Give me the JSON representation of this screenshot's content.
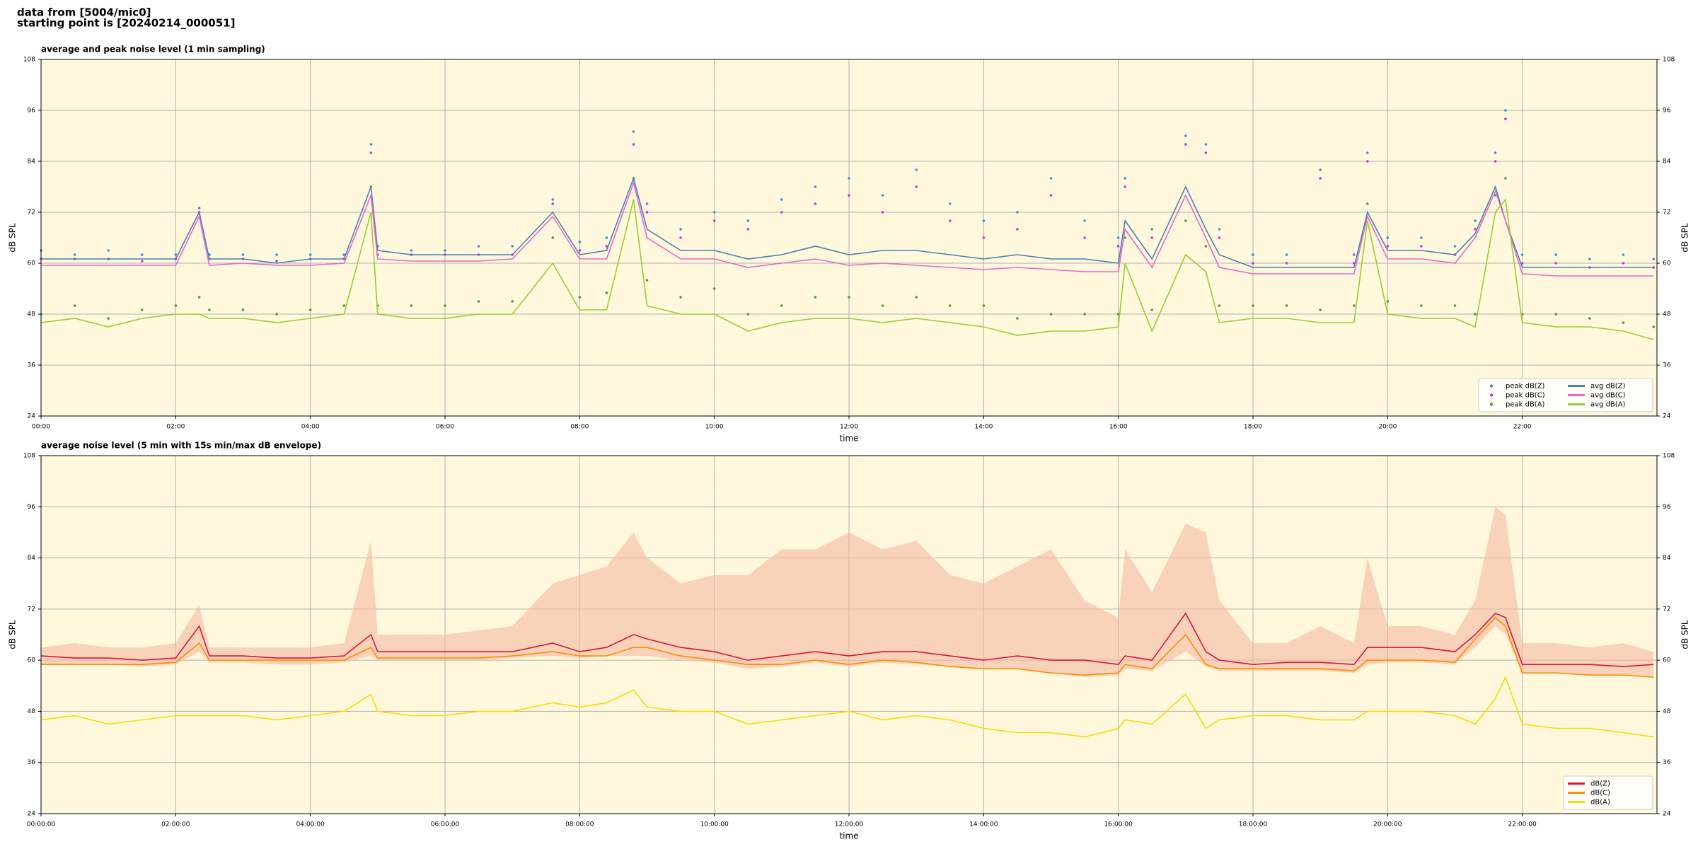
{
  "header": {
    "line1": "data from [5004/mic0]",
    "line2": "starting point is [20240214_000051]"
  },
  "chart_data": [
    {
      "type": "line",
      "title": "average and peak noise level (1 min sampling)",
      "xlabel": "time",
      "ylabel": "dB SPL",
      "background": "#fff8dc",
      "grid": true,
      "legend": "lower right",
      "legend_columns": 2,
      "x": [
        0,
        0.5,
        1,
        1.5,
        2,
        2.35,
        2.5,
        3,
        3.5,
        4,
        4.5,
        4.9,
        5,
        5.5,
        6,
        6.5,
        7,
        7.6,
        8,
        8.4,
        8.8,
        9,
        9.5,
        10,
        10.5,
        11,
        11.5,
        12,
        12.5,
        13,
        13.5,
        14,
        14.5,
        15,
        15.5,
        16,
        16.1,
        16.5,
        17,
        17.3,
        17.5,
        18,
        18.5,
        19,
        19.5,
        19.7,
        20,
        20.5,
        21,
        21.3,
        21.6,
        21.75,
        22,
        22.5,
        23,
        23.5,
        23.95
      ],
      "xlim": [
        0,
        24
      ],
      "xticks": [
        {
          "value": 0,
          "label": "00:00"
        },
        {
          "value": 2,
          "label": "02:00"
        },
        {
          "value": 4,
          "label": "04:00"
        },
        {
          "value": 6,
          "label": "06:00"
        },
        {
          "value": 8,
          "label": "08:00"
        },
        {
          "value": 10,
          "label": "10:00"
        },
        {
          "value": 12,
          "label": "12:00"
        },
        {
          "value": 14,
          "label": "14:00"
        },
        {
          "value": 16,
          "label": "16:00"
        },
        {
          "value": 18,
          "label": "18:00"
        },
        {
          "value": 20,
          "label": "20:00"
        },
        {
          "value": 22,
          "label": "22:00"
        }
      ],
      "ylim": [
        24,
        108
      ],
      "yticks": [
        24,
        36,
        48,
        60,
        72,
        84,
        96,
        108
      ],
      "series": [
        {
          "name": "peak dB(Z)",
          "kind": "scatter",
          "color": "#3b8fd9",
          "values": [
            63,
            62,
            63,
            62,
            62,
            73,
            62,
            62,
            62,
            62,
            62,
            88,
            64,
            63,
            63,
            64,
            64,
            75,
            65,
            66,
            91,
            74,
            68,
            72,
            70,
            75,
            78,
            80,
            76,
            82,
            74,
            70,
            72,
            80,
            70,
            66,
            80,
            68,
            90,
            88,
            68,
            62,
            62,
            82,
            62,
            86,
            66,
            66,
            64,
            70,
            86,
            96,
            62,
            62,
            61,
            62,
            61
          ]
        },
        {
          "name": "peak dB(C)",
          "kind": "scatter",
          "color": "#e026e0",
          "values": [
            61,
            61,
            61,
            60.5,
            61,
            72,
            61,
            61,
            60.5,
            61,
            61,
            86,
            62,
            62,
            62,
            62,
            62,
            74,
            63,
            64,
            88,
            72,
            66,
            70,
            68,
            72,
            74,
            76,
            72,
            78,
            70,
            66,
            68,
            76,
            66,
            64,
            78,
            66,
            88,
            86,
            66,
            60,
            60,
            80,
            60,
            84,
            64,
            64,
            62,
            68,
            84,
            94,
            60,
            60,
            59,
            60,
            59
          ]
        },
        {
          "name": "peak dB(A)",
          "kind": "scatter",
          "color": "#4f9a3c",
          "values": [
            48,
            50,
            47,
            49,
            50,
            52,
            49,
            49,
            48,
            49,
            50,
            78,
            50,
            50,
            50,
            51,
            51,
            66,
            52,
            53,
            80,
            56,
            52,
            54,
            48,
            50,
            52,
            52,
            50,
            52,
            50,
            50,
            47,
            48,
            48,
            48,
            66,
            49,
            70,
            64,
            50,
            50,
            50,
            49,
            50,
            74,
            51,
            50,
            50,
            48,
            76,
            80,
            48,
            48,
            47,
            46,
            45
          ]
        },
        {
          "name": "avg dB(Z)",
          "kind": "line",
          "color": "#4682b4",
          "values": [
            61,
            61,
            61,
            61,
            61,
            72,
            61,
            61,
            60,
            61,
            61,
            78,
            63,
            62,
            62,
            62,
            62,
            72,
            62,
            63,
            80,
            68,
            63,
            63,
            61,
            62,
            64,
            62,
            63,
            63,
            62,
            61,
            62,
            61,
            61,
            60,
            70,
            61,
            78,
            68,
            62,
            59,
            59,
            59,
            59,
            72,
            63,
            63,
            62,
            67,
            78,
            70,
            59,
            59,
            59,
            59,
            59
          ]
        },
        {
          "name": "avg dB(C)",
          "kind": "line",
          "color": "#e868c8",
          "values": [
            59.5,
            59.5,
            59.5,
            59.5,
            59.5,
            71,
            59.5,
            60,
            59.5,
            59.5,
            60,
            76,
            61,
            60.5,
            60.5,
            60.5,
            61,
            71,
            61,
            61,
            79,
            66,
            61,
            61,
            59,
            60,
            61,
            59.5,
            60,
            59.5,
            59,
            58.5,
            59,
            58.5,
            58,
            58,
            68,
            59,
            76,
            66,
            59,
            57.5,
            57.5,
            57.5,
            57.5,
            71,
            61,
            61,
            60,
            66,
            77,
            70,
            57.5,
            57,
            57,
            57,
            57
          ]
        },
        {
          "name": "avg dB(A)",
          "kind": "line",
          "color": "#9acd32",
          "values": [
            46,
            47,
            45,
            47,
            48,
            48,
            47,
            47,
            46,
            47,
            48,
            72,
            48,
            47,
            47,
            48,
            48,
            60,
            49,
            49,
            75,
            50,
            48,
            48,
            44,
            46,
            47,
            47,
            46,
            47,
            46,
            45,
            43,
            44,
            44,
            45,
            60,
            44,
            62,
            58,
            46,
            47,
            47,
            46,
            46,
            70,
            48,
            47,
            47,
            45,
            72,
            75,
            46,
            45,
            45,
            44,
            42
          ]
        }
      ]
    },
    {
      "type": "line",
      "title": "average noise level (5 min with 15s min/max dB envelope)",
      "xlabel": "time",
      "ylabel": "dB SPL",
      "background": "#fff8dc",
      "grid": true,
      "legend": "lower right",
      "legend_columns": 1,
      "x": [
        0,
        0.5,
        1,
        1.5,
        2,
        2.35,
        2.5,
        3,
        3.5,
        4,
        4.5,
        4.9,
        5,
        5.5,
        6,
        6.5,
        7,
        7.6,
        8,
        8.4,
        8.8,
        9,
        9.5,
        10,
        10.5,
        11,
        11.5,
        12,
        12.5,
        13,
        13.5,
        14,
        14.5,
        15,
        15.5,
        16,
        16.1,
        16.5,
        17,
        17.3,
        17.5,
        18,
        18.5,
        19,
        19.5,
        19.7,
        20,
        20.5,
        21,
        21.3,
        21.6,
        21.75,
        22,
        22.5,
        23,
        23.5,
        23.95
      ],
      "xlim": [
        0,
        24
      ],
      "xticks": [
        {
          "value": 0,
          "label": "00:00:00"
        },
        {
          "value": 2,
          "label": "02:00:00"
        },
        {
          "value": 4,
          "label": "04:00:00"
        },
        {
          "value": 6,
          "label": "06:00:00"
        },
        {
          "value": 8,
          "label": "08:00:00"
        },
        {
          "value": 10,
          "label": "10:00:00"
        },
        {
          "value": 12,
          "label": "12:00:00"
        },
        {
          "value": 14,
          "label": "14:00:00"
        },
        {
          "value": 16,
          "label": "16:00:00"
        },
        {
          "value": 18,
          "label": "18:00:00"
        },
        {
          "value": 20,
          "label": "20:00:00"
        },
        {
          "value": 22,
          "label": "22:00:00"
        }
      ],
      "ylim": [
        24,
        108
      ],
      "yticks": [
        24,
        36,
        48,
        60,
        72,
        84,
        96,
        108
      ],
      "envelope": {
        "color": "#f5b9a3",
        "min": [
          59,
          59,
          59,
          58.5,
          59,
          62,
          59.5,
          59.5,
          59,
          59,
          59.5,
          61,
          60,
          60,
          60,
          60,
          60.5,
          61,
          60.5,
          61,
          61,
          61,
          60,
          59.5,
          58,
          58.5,
          59.5,
          58.5,
          59.5,
          59,
          58.5,
          58,
          58,
          57,
          56,
          56.5,
          58,
          57.5,
          62,
          58.5,
          57.5,
          57.5,
          57.5,
          57.5,
          57,
          59,
          59.5,
          59.5,
          59,
          63,
          68,
          66,
          57,
          57,
          56.5,
          56.5,
          56
        ],
        "max": [
          63,
          64,
          63,
          63,
          64,
          73,
          63,
          63,
          63,
          63,
          64,
          88,
          66,
          66,
          66,
          67,
          68,
          78,
          80,
          82,
          90,
          84,
          78,
          80,
          80,
          86,
          86,
          90,
          86,
          88,
          80,
          78,
          82,
          86,
          74,
          70,
          86,
          76,
          92,
          90,
          74,
          64,
          64,
          68,
          64,
          84,
          68,
          68,
          66,
          74,
          96,
          94,
          64,
          64,
          63,
          64,
          62
        ]
      },
      "series": [
        {
          "name": "dB(Z)",
          "kind": "line",
          "color": "#dc143c",
          "values": [
            61,
            60.5,
            60.5,
            60,
            60.5,
            68,
            61,
            61,
            60.5,
            60.5,
            61,
            66,
            62,
            62,
            62,
            62,
            62,
            64,
            62,
            63,
            66,
            65,
            63,
            62,
            60,
            61,
            62,
            61,
            62,
            62,
            61,
            60,
            61,
            60,
            60,
            59,
            61,
            60,
            71,
            62,
            60,
            59,
            59.5,
            59.5,
            59,
            63,
            63,
            63,
            62,
            66,
            71,
            70,
            59,
            59,
            59,
            58.5,
            59
          ]
        },
        {
          "name": "dB(C)",
          "kind": "line",
          "color": "#ff8c00",
          "values": [
            59,
            59,
            59,
            59,
            59.5,
            64,
            60,
            60,
            60,
            60,
            60,
            63,
            60.5,
            60.5,
            60.5,
            60.5,
            61,
            62,
            61,
            61,
            63,
            63,
            61,
            60,
            59,
            59,
            60,
            59,
            60,
            59.5,
            58.5,
            58,
            58,
            57,
            56.5,
            57,
            59,
            58,
            66,
            59,
            58,
            58,
            58,
            58,
            57.5,
            60,
            60,
            60,
            59.5,
            65,
            70,
            68,
            57,
            57,
            56.5,
            56.5,
            56
          ]
        },
        {
          "name": "dB(A)",
          "kind": "line",
          "color": "#ffd700",
          "values": [
            46,
            47,
            45,
            46,
            47,
            47,
            47,
            47,
            46,
            47,
            48,
            52,
            48,
            47,
            47,
            48,
            48,
            50,
            49,
            50,
            53,
            49,
            48,
            48,
            45,
            46,
            47,
            48,
            46,
            47,
            46,
            44,
            43,
            43,
            42,
            44,
            46,
            45,
            52,
            44,
            46,
            47,
            47,
            46,
            46,
            48,
            48,
            48,
            47,
            45,
            51,
            56,
            45,
            44,
            44,
            43,
            42
          ]
        }
      ]
    }
  ]
}
